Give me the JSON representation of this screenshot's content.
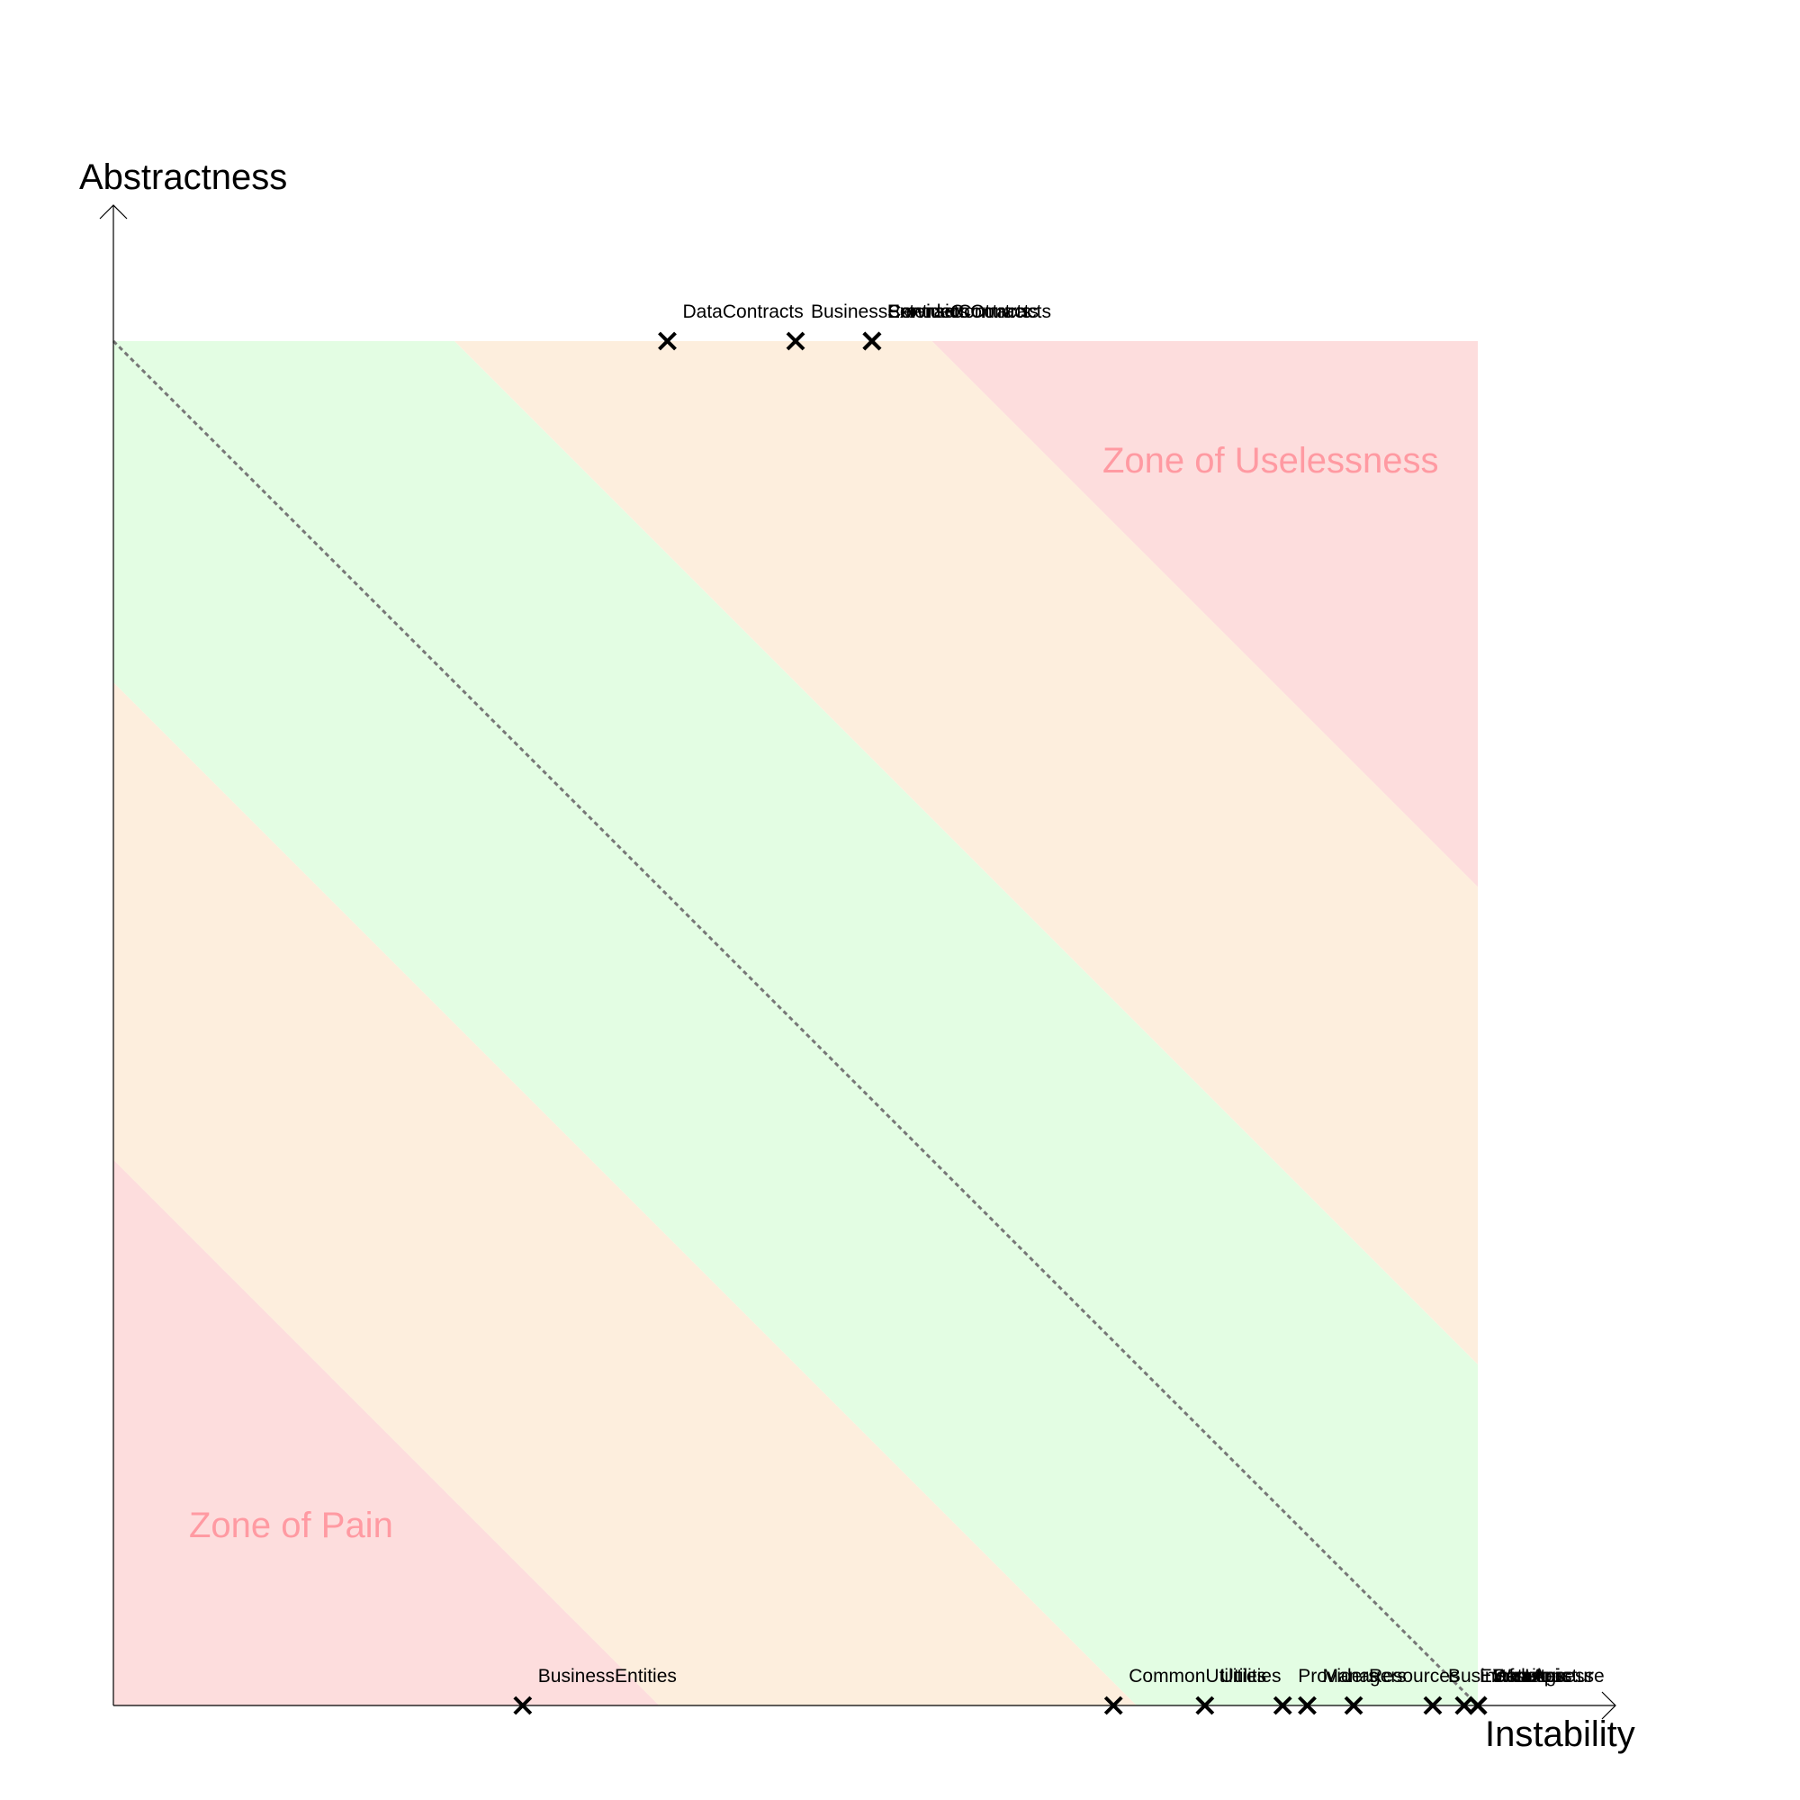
{
  "chart_data": {
    "type": "scatter",
    "xlabel": "Instability",
    "ylabel": "Abstractness",
    "xlim": [
      0,
      1
    ],
    "ylim": [
      0,
      1
    ],
    "grid": false,
    "legend": "none",
    "zones": {
      "pain_label": "Zone of Pain",
      "uselessness_label": "Zone of Uselessness"
    },
    "colors": {
      "zone_red": "#fddddd",
      "zone_orange": "#fdeedd",
      "zone_green": "#e3fde3",
      "zone_label": "#ff9aa2",
      "main_sequence": "#777777",
      "axis": "#000000"
    },
    "points": [
      {
        "name": "BusinessEntities",
        "x": 0.3,
        "y": 0.0
      },
      {
        "name": "CommonUtilities",
        "x": 0.733,
        "y": 0.0
      },
      {
        "name": "Utilities",
        "x": 0.8,
        "y": 0.0
      },
      {
        "name": "Providers",
        "x": 0.857,
        "y": 0.0
      },
      {
        "name": "Managers",
        "x": 0.875,
        "y": 0.0
      },
      {
        "name": "Resources",
        "x": 0.909,
        "y": 0.0
      },
      {
        "name": "BusinessLogic",
        "x": 0.967,
        "y": 0.0
      },
      {
        "name": "Extensions",
        "x": 0.99,
        "y": 0.0
      },
      {
        "name": "DataAccess",
        "x": 1.0,
        "y": 0.0
      },
      {
        "name": "Infrastructure",
        "x": 1.0,
        "y": 0.0
      },
      {
        "name": "Services",
        "x": 1.0,
        "y": 0.0
      },
      {
        "name": "WebApi",
        "x": 1.0,
        "y": 0.0
      },
      {
        "name": "DataContracts",
        "x": 0.406,
        "y": 1.0
      },
      {
        "name": "BusinessContracts",
        "x": 0.5,
        "y": 1.0
      },
      {
        "name": "ServiceContracts",
        "x": 0.556,
        "y": 1.0
      },
      {
        "name": "ProviderContracts",
        "x": 0.556,
        "y": 1.0
      },
      {
        "name": "ExtensionContracts",
        "x": 0.556,
        "y": 1.0
      }
    ]
  }
}
